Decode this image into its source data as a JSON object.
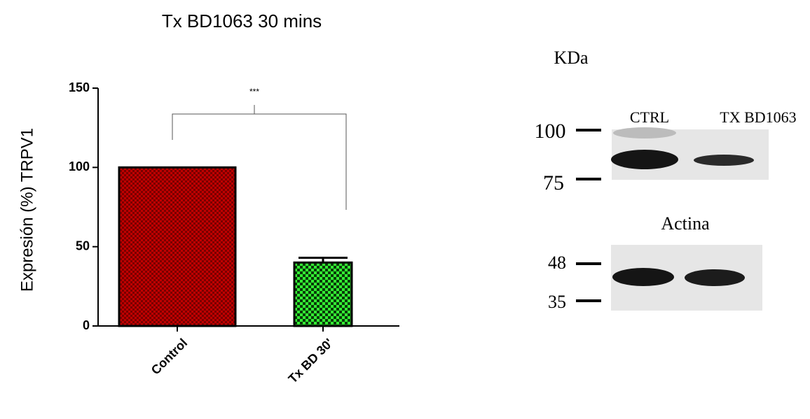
{
  "chart_data": {
    "type": "bar",
    "title": "Tx BD1063 30 mins",
    "y_label": "Expresión (%) TRPV1",
    "categories": [
      "Control",
      "Tx BD 30'"
    ],
    "values": [
      100,
      40
    ],
    "errors": [
      null,
      3
    ],
    "colors": [
      "#c00000",
      "#22dd22"
    ],
    "ylim": [
      0,
      150
    ],
    "yticks": [
      0,
      50,
      100,
      150
    ],
    "annotation": "***"
  },
  "blot": {
    "unit_label": "KDa",
    "lanes": [
      "CTRL",
      "TX BD1063"
    ],
    "upper_markers": [
      "100",
      "75"
    ],
    "lower_title": "Actina",
    "lower_markers": [
      "48",
      "35"
    ]
  }
}
